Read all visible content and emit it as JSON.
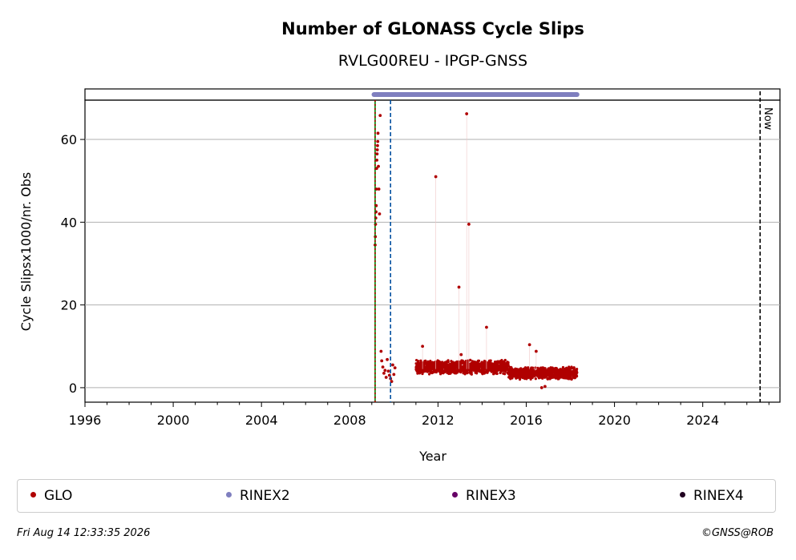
{
  "chart_data": {
    "type": "scatter",
    "title": "Number of GLONASS Cycle Slips",
    "subtitle": "RVLG00REU - IPGP-GNSS",
    "xlabel": "Year",
    "ylabel": "Cycle Slipsx1000/nr. Obs",
    "xlim": [
      1996,
      2027.5
    ],
    "ylim": [
      -3.5,
      69.5
    ],
    "xticks": [
      1996,
      2000,
      2004,
      2008,
      2012,
      2016,
      2020,
      2024
    ],
    "yticks": [
      0,
      20,
      40,
      60
    ],
    "grid": "horizontal",
    "series": [
      {
        "name": "GLO",
        "color": "#b00000",
        "points": [
          [
            2009.15,
            34.5
          ],
          [
            2009.16,
            36.5
          ],
          [
            2009.17,
            39.5
          ],
          [
            2009.18,
            41.0
          ],
          [
            2009.19,
            42.5
          ],
          [
            2009.2,
            44.0
          ],
          [
            2009.21,
            48.0
          ],
          [
            2009.22,
            53.0
          ],
          [
            2009.23,
            55.0
          ],
          [
            2009.24,
            56.5
          ],
          [
            2009.25,
            57.5
          ],
          [
            2009.26,
            58.5
          ],
          [
            2009.27,
            59.5
          ],
          [
            2009.28,
            61.5
          ],
          [
            2009.3,
            53.5
          ],
          [
            2009.32,
            48.0
          ],
          [
            2009.35,
            42.0
          ],
          [
            2009.38,
            65.8
          ],
          [
            2009.42,
            8.8
          ],
          [
            2009.45,
            6.5
          ],
          [
            2009.5,
            5.0
          ],
          [
            2009.55,
            3.5
          ],
          [
            2009.6,
            4.2
          ],
          [
            2009.65,
            2.5
          ],
          [
            2009.7,
            6.8
          ],
          [
            2009.75,
            4.0
          ],
          [
            2009.8,
            3.0
          ],
          [
            2009.85,
            2.2
          ],
          [
            2009.9,
            1.5
          ],
          [
            2009.95,
            5.5
          ],
          [
            2010.0,
            3.2
          ],
          [
            2010.05,
            4.8
          ],
          [
            2011.3,
            10.0
          ],
          [
            2011.9,
            51.0
          ],
          [
            2012.95,
            24.3
          ],
          [
            2013.05,
            8.0
          ],
          [
            2013.3,
            66.2
          ],
          [
            2013.4,
            39.5
          ],
          [
            2014.2,
            14.6
          ],
          [
            2016.15,
            10.4
          ],
          [
            2016.45,
            8.8
          ],
          [
            2016.7,
            0.0
          ],
          [
            2016.85,
            0.3
          ]
        ],
        "band_segments": [
          {
            "x": [
              2011.0,
              2015.2
            ],
            "y_center": 5.0,
            "y_spread": 1.8
          },
          {
            "x": [
              2015.2,
              2018.3
            ],
            "y_center": 3.5,
            "y_spread": 1.6
          }
        ]
      },
      {
        "name": "RINEX2",
        "color": "#7f7fbf",
        "coverage": [
          2009.1,
          2018.3
        ]
      },
      {
        "name": "RINEX3",
        "color": "#660066"
      },
      {
        "name": "RINEX4",
        "color": "#200020"
      }
    ],
    "vlines": [
      {
        "x": 2009.15,
        "color": "#008000",
        "style": "solid"
      },
      {
        "x": 2009.15,
        "color": "#b00000",
        "style": "dotted"
      },
      {
        "x": 2009.85,
        "color": "#0050a0",
        "style": "dashed"
      },
      {
        "x": 2026.6,
        "color": "#000000",
        "style": "dashed",
        "label": "Now"
      }
    ]
  },
  "legend": {
    "glo": "GLO",
    "rinex2": "RINEX2",
    "rinex3": "RINEX3",
    "rinex4": "RINEX4"
  },
  "footer": {
    "timestamp": "Fri Aug 14 12:33:35 2026",
    "copyright": "©GNSS@ROB"
  }
}
